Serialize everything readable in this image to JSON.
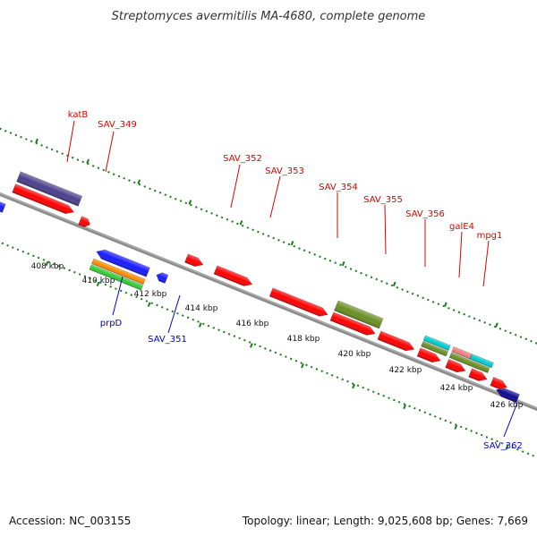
{
  "title": "Streptomyces avermitilis MA-4680, complete genome",
  "footer": {
    "accession": "Accession: NC_003155",
    "topology": "Topology: linear; Length: 9,025,608 bp; Genes: 7,669"
  },
  "colors": {
    "forward_label": "#dd0000",
    "reverse_label": "#0000cc",
    "backbone": "#8c8c8c",
    "ruler": "#1b7a1b",
    "red_gene": "#ff0000",
    "blue_gene": "#1a1aff",
    "navy_gene": "#120a8f",
    "purple_gene": "#4b3f8c",
    "olive_gene": "#6b8e23",
    "orange_gene": "#ff8c00",
    "green_gene": "#32cd32",
    "cyan_gene": "#00ced1",
    "pink_gene": "#f08080"
  },
  "scale_labels": [
    "408 kbp",
    "410 kbp",
    "412 kbp",
    "414 kbp",
    "416 kbp",
    "418 kbp",
    "420 kbp",
    "422 kbp",
    "424 kbp",
    "426 kbp"
  ],
  "forward_gene_labels": [
    "katB",
    "SAV_349",
    "SAV_352",
    "SAV_353",
    "SAV_354",
    "SAV_355",
    "SAV_356",
    "galE4",
    "mpg1"
  ],
  "reverse_gene_labels": [
    "prpD",
    "SAV_351",
    "SAV_362"
  ]
}
